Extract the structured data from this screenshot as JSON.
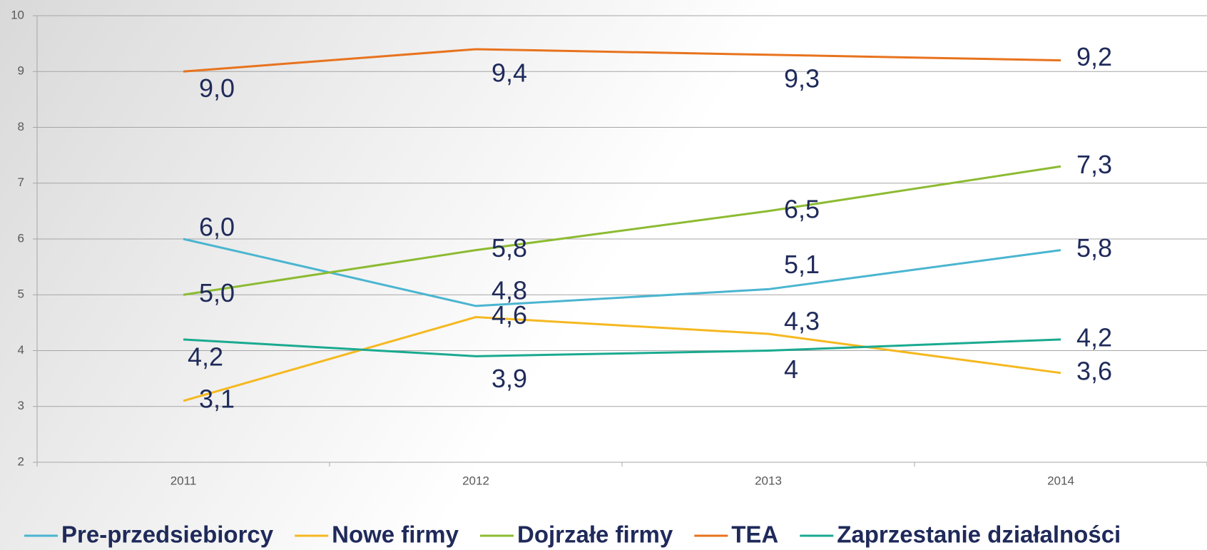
{
  "chart_data": {
    "type": "line",
    "categories": [
      "2011",
      "2012",
      "2013",
      "2014"
    ],
    "ylim": [
      2,
      10
    ],
    "yticks": [
      2,
      3,
      4,
      5,
      6,
      7,
      8,
      9,
      10
    ],
    "grid": true,
    "series": [
      {
        "name": "Pre-przedsiebiorcy",
        "color": "#4ab5d0",
        "values": [
          6.0,
          4.8,
          5.1,
          5.8
        ],
        "value_labels": [
          "6,0",
          "4,8",
          "5,1",
          "5,8"
        ]
      },
      {
        "name": "Nowe firmy",
        "color": "#f5b820",
        "values": [
          3.1,
          4.6,
          4.3,
          3.6
        ],
        "value_labels": [
          "3,1",
          "4,6",
          "4,3",
          "3,6"
        ]
      },
      {
        "name": "Dojrzałe firmy",
        "color": "#8cbb32",
        "values": [
          5.0,
          5.8,
          6.5,
          7.3
        ],
        "value_labels": [
          "5,0",
          "5,8",
          "6,5",
          "7,3"
        ]
      },
      {
        "name": "TEA",
        "color": "#e8731e",
        "values": [
          9.0,
          9.4,
          9.3,
          9.2
        ],
        "value_labels": [
          "9,0",
          "9,4",
          "9,3",
          "9,2"
        ]
      },
      {
        "name": "Zaprzestanie działalności",
        "color": "#1aaa90",
        "values": [
          4.2,
          3.9,
          4,
          4.2
        ],
        "value_labels": [
          "4,2",
          "3,9",
          "4",
          "4,2"
        ]
      }
    ]
  }
}
